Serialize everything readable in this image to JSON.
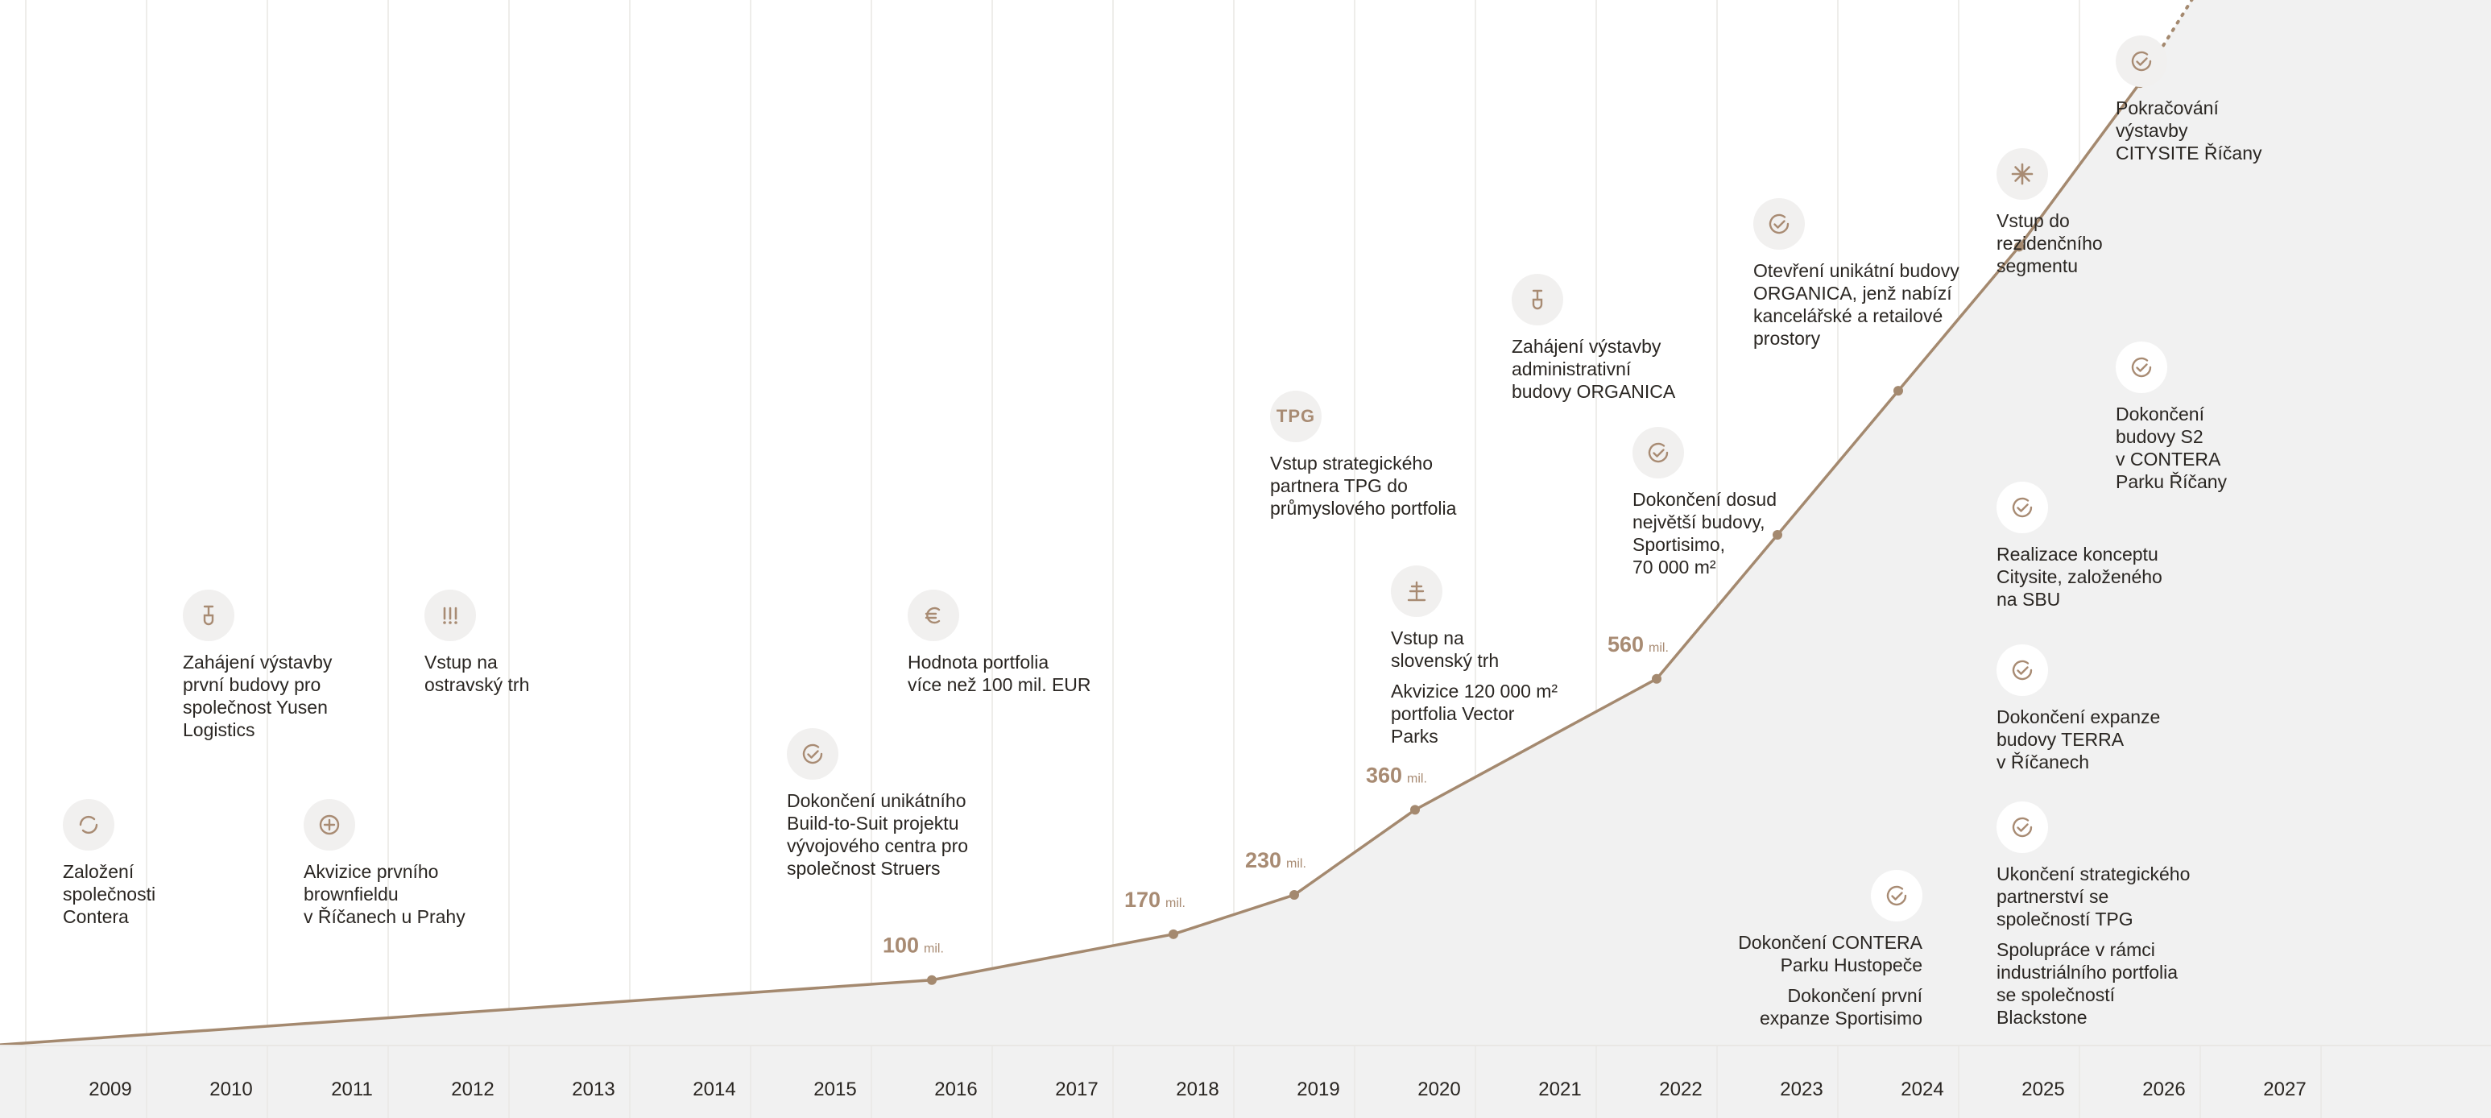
{
  "chart_data": {
    "type": "line",
    "title": "",
    "xlabel": "",
    "ylabel": "",
    "years": [
      "2009",
      "2010",
      "2011",
      "2012",
      "2013",
      "2014",
      "2015",
      "2016",
      "2017",
      "2018",
      "2019",
      "2020",
      "2021",
      "2022",
      "2023",
      "2024",
      "2025",
      "2026",
      "2027"
    ],
    "xlim": [
      2008.2,
      2028.5
    ],
    "ylim": [
      0,
      1400
    ],
    "unit": "mil.",
    "series": [
      {
        "points": [
          {
            "x": 2008.2,
            "y": 0
          },
          {
            "x": 2016.0,
            "y": 100
          },
          {
            "x": 2018.0,
            "y": 170
          },
          {
            "x": 2019.0,
            "y": 230
          },
          {
            "x": 2020.0,
            "y": 360
          },
          {
            "x": 2022.0,
            "y": 560
          },
          {
            "x": 2023.0,
            "y": 780
          },
          {
            "x": 2024.0,
            "y": 1000
          },
          {
            "x": 2025.0,
            "y": 1220
          },
          {
            "x": 2026.0,
            "y": 1470
          }
        ],
        "projection": [
          {
            "x": 2026.0,
            "y": 1470
          },
          {
            "x": 2028.3,
            "y": 2150
          }
        ]
      }
    ],
    "value_labels": [
      {
        "x": 2016.0,
        "y": 100,
        "value": "100",
        "unit": "mil."
      },
      {
        "x": 2018.0,
        "y": 170,
        "value": "170",
        "unit": "mil."
      },
      {
        "x": 2019.0,
        "y": 230,
        "value": "230",
        "unit": "mil."
      },
      {
        "x": 2020.0,
        "y": 360,
        "value": "360",
        "unit": "mil."
      },
      {
        "x": 2022.0,
        "y": 560,
        "value": "560",
        "unit": "mil."
      }
    ],
    "colors": {
      "line": "#a4896f",
      "value_text": "#a88b73",
      "area": "#f1f1f1",
      "grid": "#e9e7e4",
      "icon_bg": "#f1f0ef",
      "icon_stroke": "#a88b73"
    }
  },
  "events": [
    {
      "id": "e1",
      "icon": "circle-arrows-icon",
      "texts": [
        "Založení\nspolečnosti\nContera"
      ]
    },
    {
      "id": "e2",
      "icon": "shovel-icon",
      "texts": [
        "Zahájení výstavby\nprvní budovy pro\nspolečnost Yusen\nLogistics"
      ]
    },
    {
      "id": "e3",
      "icon": "plus-circle-icon",
      "texts": [
        "Akvizice prvního\nbrownfieldu\nv Říčanech u Prahy"
      ]
    },
    {
      "id": "e4",
      "icon": "exclamation-icon",
      "texts": [
        "Vstup na\nostravský trh"
      ]
    },
    {
      "id": "e5",
      "icon": "check-circle-icon",
      "texts": [
        "Dokončení unikátního\nBuild-to-Suit projektu\nvývojového centra pro\nspolečnost Struers"
      ]
    },
    {
      "id": "e6",
      "icon": "euro-icon",
      "texts": [
        "Hodnota portfolia\nvíce než 100 mil. EUR"
      ]
    },
    {
      "id": "e7",
      "icon": "tpg-icon",
      "icon_text": "TPG",
      "texts": [
        "Vstup strategického\npartnera TPG do\nprůmyslového portfolia"
      ]
    },
    {
      "id": "e8",
      "icon": "cross-icon",
      "texts": [
        "Vstup na\nslovenský trh",
        "Akvizice 120 000 m²\nportfolia Vector\nParks"
      ]
    },
    {
      "id": "e9",
      "icon": "shovel-icon",
      "texts": [
        "Zahájení výstavby\nadministrativní\nbudovy ORGANICA"
      ]
    },
    {
      "id": "e10",
      "icon": "check-circle-icon",
      "texts": [
        "Dokončení dosud\nnejvětší budovy,\nSportisimo,\n70 000 m²"
      ]
    },
    {
      "id": "e11",
      "icon": "check-circle-icon",
      "texts": [
        "Otevření unikátní budovy\nORGANICA, jenž nabízí\nkancelářské a retailové\nprostory"
      ]
    },
    {
      "id": "e12",
      "icon": "check-circle-icon",
      "texts": [
        "Dokončení CONTERA\nParku Hustopeče",
        "Dokončení první\nexpanze Sportisimo"
      ]
    },
    {
      "id": "e13",
      "icon": "asterisk-icon",
      "texts": [
        "Vstup do\nrezidenčního\nsegmentu"
      ]
    },
    {
      "id": "e14",
      "icon": "check-circle-icon",
      "texts": [
        "Realizace konceptu\nCitysite, založeného\nna SBU"
      ]
    },
    {
      "id": "e15",
      "icon": "check-circle-icon",
      "texts": [
        "Dokončení expanze\nbudovy TERRA\nv Říčanech"
      ]
    },
    {
      "id": "e16",
      "icon": "check-circle-icon",
      "texts": [
        "Ukončení strategického\npartnerství se\nspolečností TPG",
        "Spolupráce v rámci\nindustriálního portfolia\nse společností\nBlackstone"
      ]
    },
    {
      "id": "e17",
      "icon": "check-circle-icon",
      "texts": [
        "Pokračování\nvýstavby\nCITYSITE Říčany"
      ]
    },
    {
      "id": "e18",
      "icon": "check-circle-icon",
      "texts": [
        "Dokončení\nbudovy S2\nv CONTERA\nParku Říčany"
      ]
    }
  ]
}
